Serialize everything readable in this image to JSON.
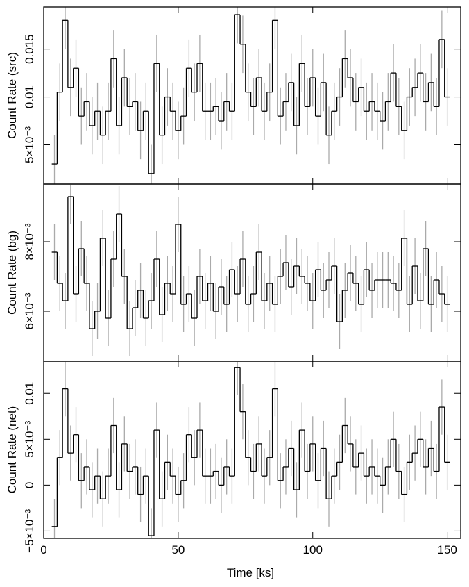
{
  "chart_data": [
    {
      "type": "step",
      "ylabel": "Count Rate (src)",
      "color": "#000000",
      "error_color": "#aaaaaa",
      "x": [
        4,
        6,
        8,
        10,
        12,
        14,
        16,
        18,
        20,
        22,
        24,
        26,
        28,
        30,
        32,
        34,
        36,
        38,
        40,
        42,
        44,
        46,
        48,
        50,
        52,
        54,
        56,
        58,
        60,
        62,
        64,
        66,
        68,
        70,
        72,
        74,
        76,
        78,
        80,
        82,
        84,
        86,
        88,
        90,
        92,
        94,
        96,
        98,
        100,
        102,
        104,
        106,
        108,
        110,
        112,
        114,
        116,
        118,
        120,
        122,
        124,
        126,
        128,
        130,
        132,
        134,
        136,
        138,
        140,
        142,
        144,
        146,
        148,
        150
      ],
      "values": [
        0.003,
        0.0105,
        0.018,
        0.011,
        0.013,
        0.008,
        0.0095,
        0.007,
        0.0085,
        0.006,
        0.0085,
        0.014,
        0.007,
        0.012,
        0.009,
        0.0095,
        0.0065,
        0.0085,
        0.002,
        0.0135,
        0.006,
        0.01,
        0.0085,
        0.0065,
        0.008,
        0.013,
        0.0105,
        0.0135,
        0.0085,
        0.0085,
        0.009,
        0.0075,
        0.0095,
        0.0085,
        0.0186,
        0.0155,
        0.0105,
        0.009,
        0.012,
        0.0085,
        0.0105,
        0.018,
        0.008,
        0.0095,
        0.0115,
        0.007,
        0.0135,
        0.009,
        0.012,
        0.008,
        0.0115,
        0.006,
        0.0085,
        0.01,
        0.014,
        0.012,
        0.0095,
        0.011,
        0.0085,
        0.0095,
        0.0085,
        0.0075,
        0.0095,
        0.0125,
        0.009,
        0.0065,
        0.01,
        0.011,
        0.0125,
        0.0095,
        0.0115,
        0.009,
        0.016,
        0.01
      ],
      "error": 0.003,
      "xlim": [
        0,
        155
      ],
      "xticks": [
        0,
        50,
        100,
        150
      ],
      "ylim": [
        0.0009,
        0.0194
      ],
      "yticks": [
        {
          "value": 0.005,
          "label": "5×10⁻³"
        },
        0.01,
        0.015
      ]
    },
    {
      "type": "step",
      "ylabel": "Count Rate (bg)",
      "color": "#000000",
      "error_color": "#aaaaaa",
      "x": [
        4,
        6,
        8,
        10,
        12,
        14,
        16,
        18,
        20,
        22,
        24,
        26,
        28,
        30,
        32,
        34,
        36,
        38,
        40,
        42,
        44,
        46,
        48,
        50,
        52,
        54,
        56,
        58,
        60,
        62,
        64,
        66,
        68,
        70,
        72,
        74,
        76,
        78,
        80,
        82,
        84,
        86,
        88,
        90,
        92,
        94,
        96,
        98,
        100,
        102,
        104,
        106,
        108,
        110,
        112,
        114,
        116,
        118,
        120,
        122,
        124,
        126,
        128,
        130,
        132,
        134,
        136,
        138,
        140,
        142,
        144,
        146,
        148,
        150
      ],
      "values": [
        0.0077,
        0.0068,
        0.0063,
        0.0093,
        0.0065,
        0.0078,
        0.0068,
        0.0055,
        0.006,
        0.0081,
        0.0058,
        0.0075,
        0.0088,
        0.007,
        0.0055,
        0.0061,
        0.0066,
        0.0058,
        0.0063,
        0.0075,
        0.0059,
        0.0068,
        0.0065,
        0.0085,
        0.0062,
        0.0065,
        0.0058,
        0.007,
        0.0063,
        0.0068,
        0.006,
        0.0067,
        0.0062,
        0.0072,
        0.0065,
        0.0075,
        0.0062,
        0.0065,
        0.0077,
        0.0063,
        0.0068,
        0.0062,
        0.007,
        0.0074,
        0.0067,
        0.0073,
        0.007,
        0.0068,
        0.0063,
        0.0072,
        0.0066,
        0.0069,
        0.0073,
        0.0057,
        0.0066,
        0.0071,
        0.0068,
        0.0062,
        0.0072,
        0.0066,
        0.0069,
        0.0069,
        0.0069,
        0.0068,
        0.0066,
        0.0081,
        0.0062,
        0.0073,
        0.0063,
        0.0078,
        0.0062,
        0.0069,
        0.0065,
        0.0062
      ],
      "error": 0.0008,
      "xlim": [
        0,
        155
      ],
      "xticks": [
        0,
        50,
        100,
        150
      ],
      "ylim": [
        0.00456,
        0.00966
      ],
      "yticks": [
        {
          "value": 0.006,
          "label": "6×10⁻³"
        },
        {
          "value": 0.008,
          "label": "8×10⁻³"
        }
      ]
    },
    {
      "type": "step",
      "ylabel": "Count Rate (net)",
      "xlabel": "Time [ks]",
      "color": "#000000",
      "error_color": "#aaaaaa",
      "x": [
        4,
        6,
        8,
        10,
        12,
        14,
        16,
        18,
        20,
        22,
        24,
        26,
        28,
        30,
        32,
        34,
        36,
        38,
        40,
        42,
        44,
        46,
        48,
        50,
        52,
        54,
        56,
        58,
        60,
        62,
        64,
        66,
        68,
        70,
        72,
        74,
        76,
        78,
        80,
        82,
        84,
        86,
        88,
        90,
        92,
        94,
        96,
        98,
        100,
        102,
        104,
        106,
        108,
        110,
        112,
        114,
        116,
        118,
        120,
        122,
        124,
        126,
        128,
        130,
        132,
        134,
        136,
        138,
        140,
        142,
        144,
        146,
        148,
        150
      ],
      "values": [
        -0.0045,
        0.003,
        0.0105,
        0.0035,
        0.0055,
        0.0005,
        0.002,
        -0.0005,
        0.001,
        -0.0015,
        0.001,
        0.0065,
        -0.0005,
        0.0045,
        0.0015,
        0.002,
        -0.001,
        0.001,
        -0.0055,
        0.006,
        -0.0015,
        0.0025,
        0.001,
        -0.001,
        0.0005,
        0.0055,
        0.003,
        0.006,
        0.001,
        0.001,
        0.0015,
        0,
        0.002,
        0.001,
        0.0128,
        0.008,
        0.003,
        0.0015,
        0.0045,
        0.001,
        0.003,
        0.0105,
        0.0005,
        0.002,
        0.004,
        -0.0005,
        0.006,
        0.0015,
        0.0045,
        0.0005,
        0.004,
        -0.0015,
        0.001,
        0.0025,
        0.0065,
        0.0045,
        0.002,
        0.0035,
        0.001,
        0.002,
        0.001,
        0,
        0.002,
        0.005,
        0.0015,
        -0.001,
        0.0025,
        0.0035,
        0.005,
        0.002,
        0.004,
        0.0015,
        0.0085,
        0.0025
      ],
      "error": 0.003,
      "xlim": [
        0,
        155
      ],
      "xticks": [
        0,
        50,
        100,
        150
      ],
      "ylim": [
        -0.0058,
        0.0135
      ],
      "yticks": [
        {
          "value": -0.005,
          "label": "−5×10⁻³"
        },
        0,
        {
          "value": 0.005,
          "label": "5×10⁻³"
        },
        0.01
      ]
    }
  ]
}
